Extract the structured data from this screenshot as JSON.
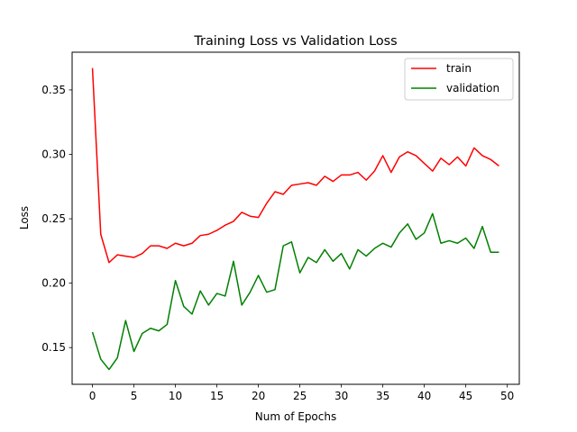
{
  "chart_data": {
    "type": "line",
    "title": "Training Loss vs Validation Loss",
    "xlabel": "Num of Epochs",
    "ylabel": "Loss",
    "xlim": [
      -2.45,
      51.45
    ],
    "ylim": [
      0.1215,
      0.3793
    ],
    "xticks": [
      0,
      5,
      10,
      15,
      20,
      25,
      30,
      35,
      40,
      45,
      50
    ],
    "yticks": [
      0.15,
      0.2,
      0.25,
      0.3,
      0.35
    ],
    "ytick_labels": [
      "0.15",
      "0.20",
      "0.25",
      "0.30",
      "0.35"
    ],
    "grid": false,
    "legend_position": "upper right",
    "x": [
      0,
      1,
      2,
      3,
      4,
      5,
      6,
      7,
      8,
      9,
      10,
      11,
      12,
      13,
      14,
      15,
      16,
      17,
      18,
      19,
      20,
      21,
      22,
      23,
      24,
      25,
      26,
      27,
      28,
      29,
      30,
      31,
      32,
      33,
      34,
      35,
      36,
      37,
      38,
      39,
      40,
      41,
      42,
      43,
      44,
      45,
      46,
      47,
      48,
      49
    ],
    "series": [
      {
        "name": "train",
        "color": "#ff0000",
        "values": [
          0.367,
          0.238,
          0.216,
          0.222,
          0.221,
          0.22,
          0.223,
          0.229,
          0.229,
          0.227,
          0.231,
          0.229,
          0.231,
          0.237,
          0.238,
          0.241,
          0.245,
          0.248,
          0.255,
          0.252,
          0.251,
          0.262,
          0.271,
          0.269,
          0.276,
          0.277,
          0.278,
          0.276,
          0.283,
          0.279,
          0.284,
          0.284,
          0.286,
          0.28,
          0.287,
          0.299,
          0.286,
          0.298,
          0.302,
          0.299,
          0.293,
          0.287,
          0.297,
          0.292,
          0.298,
          0.291,
          0.305,
          0.299,
          0.296,
          0.291
        ]
      },
      {
        "name": "validation",
        "color": "#008000",
        "values": [
          0.162,
          0.141,
          0.133,
          0.142,
          0.171,
          0.147,
          0.161,
          0.165,
          0.163,
          0.168,
          0.202,
          0.182,
          0.176,
          0.194,
          0.183,
          0.192,
          0.19,
          0.217,
          0.183,
          0.193,
          0.206,
          0.193,
          0.195,
          0.229,
          0.232,
          0.208,
          0.22,
          0.216,
          0.226,
          0.217,
          0.223,
          0.211,
          0.226,
          0.221,
          0.227,
          0.231,
          0.228,
          0.239,
          0.246,
          0.234,
          0.239,
          0.254,
          0.231,
          0.233,
          0.231,
          0.235,
          0.227,
          0.244,
          0.224,
          0.224
        ]
      }
    ]
  }
}
